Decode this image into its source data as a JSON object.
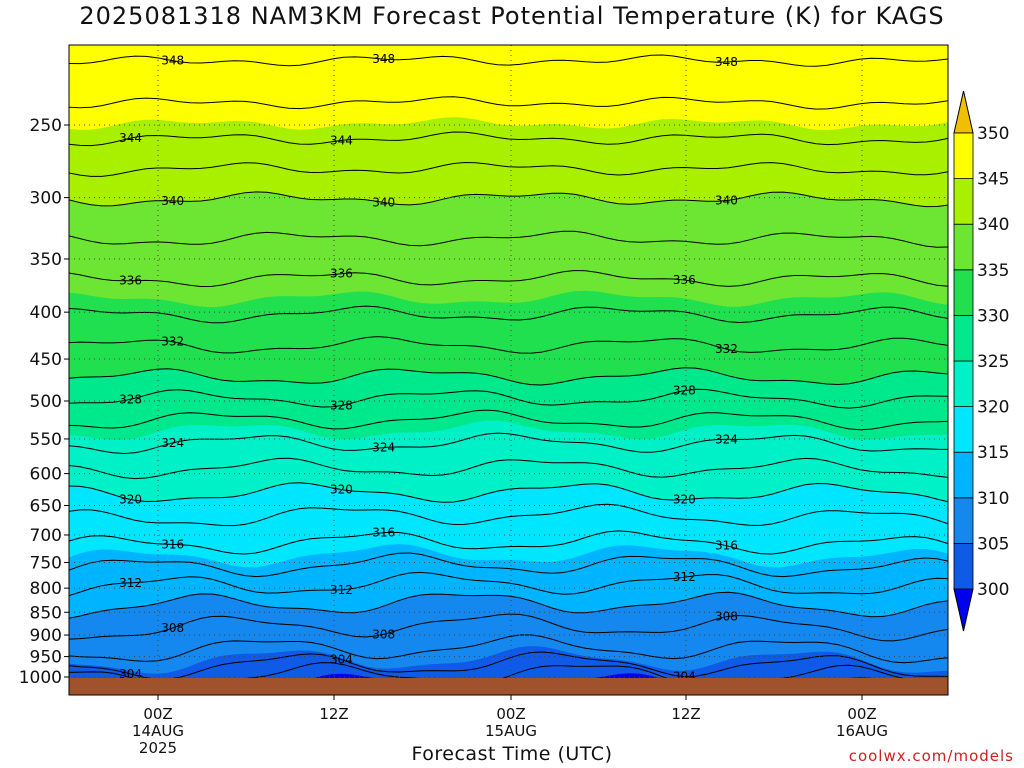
{
  "chart_data": {
    "type": "heatmap",
    "subtype": "time-height cross section (filled contours with labeled contour lines)",
    "title": "2025081318 NAM3KM Forecast Potential Temperature (K) for KAGS",
    "xlabel": "Forecast Time (UTC)",
    "ylabel": "",
    "credit": "coolwx.com/models",
    "y_ticks": [
      "250",
      "300",
      "350",
      "400",
      "450",
      "500",
      "550",
      "600",
      "650",
      "700",
      "750",
      "800",
      "850",
      "900",
      "950",
      "1000"
    ],
    "y_scale": "log pressure (hPa), 1000 at bottom",
    "x_ticks": [
      {
        "lines": [
          "00Z",
          "14AUG",
          "2025"
        ]
      },
      {
        "lines": [
          "12Z"
        ]
      },
      {
        "lines": [
          "00Z",
          "15AUG"
        ]
      },
      {
        "lines": [
          "12Z"
        ]
      },
      {
        "lines": [
          "00Z",
          "16AUG"
        ]
      }
    ],
    "grid": true,
    "colorbar": {
      "ticks": [
        "300",
        "305",
        "310",
        "315",
        "320",
        "325",
        "330",
        "335",
        "340",
        "345",
        "350"
      ],
      "colors": [
        "#0000f0",
        "#0f5ae6",
        "#1488ee",
        "#00b4ff",
        "#00e6ff",
        "#00f0c8",
        "#00e88c",
        "#20e050",
        "#6ce632",
        "#a8f000",
        "#ffff00",
        "#f0c000"
      ]
    },
    "contour_labels": [
      {
        "text": "348"
      },
      {
        "text": "348"
      },
      {
        "text": "348"
      },
      {
        "text": "344"
      },
      {
        "text": "344"
      },
      {
        "text": "340"
      },
      {
        "text": "340"
      },
      {
        "text": "340"
      },
      {
        "text": "336"
      },
      {
        "text": "336"
      },
      {
        "text": "336"
      },
      {
        "text": "332"
      },
      {
        "text": "332"
      },
      {
        "text": "328"
      },
      {
        "text": "328"
      },
      {
        "text": "328"
      },
      {
        "text": "324"
      },
      {
        "text": "324"
      },
      {
        "text": "324"
      },
      {
        "text": "320"
      },
      {
        "text": "320"
      },
      {
        "text": "320"
      },
      {
        "text": "316"
      },
      {
        "text": "316"
      },
      {
        "text": "316"
      },
      {
        "text": "312"
      },
      {
        "text": "312"
      },
      {
        "text": "312"
      },
      {
        "text": "308"
      },
      {
        "text": "308"
      },
      {
        "text": "308"
      },
      {
        "text": "304"
      },
      {
        "text": "304"
      },
      {
        "text": "304"
      }
    ],
    "terrain_color": "#a0522d"
  }
}
